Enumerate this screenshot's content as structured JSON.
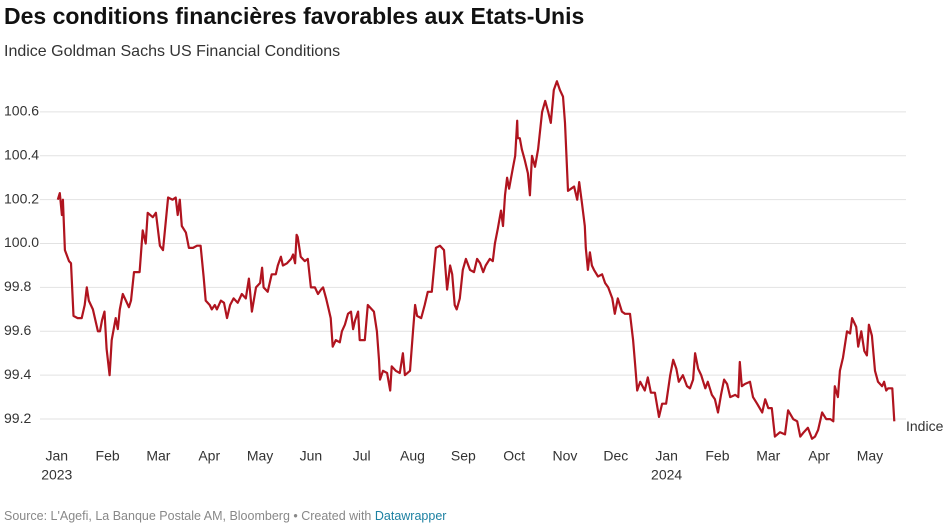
{
  "chart_data": {
    "type": "line",
    "title": "Des conditions financières favorables aux Etats-Unis",
    "subtitle": "Indice Goldman Sachs US Financial Conditions",
    "source": "Source: L'Agefi, La Banque Postale AM, Bloomberg • Created with",
    "credit": "Datawrapper",
    "x": [
      0.02,
      0.06,
      0.1,
      0.12,
      0.16,
      0.24,
      0.28,
      0.33,
      0.41,
      0.49,
      0.55,
      0.59,
      0.63,
      0.71,
      0.77,
      0.81,
      0.85,
      0.89,
      0.94,
      0.98,
      1.04,
      1.08,
      1.16,
      1.2,
      1.24,
      1.3,
      1.36,
      1.42,
      1.46,
      1.52,
      1.63,
      1.69,
      1.75,
      1.79,
      1.89,
      1.95,
      2.03,
      2.09,
      2.19,
      2.28,
      2.34,
      2.38,
      2.42,
      2.46,
      2.54,
      2.6,
      2.68,
      2.76,
      2.83,
      2.89,
      2.93,
      3.01,
      3.05,
      3.11,
      3.15,
      3.23,
      3.29,
      3.35,
      3.41,
      3.48,
      3.56,
      3.64,
      3.72,
      3.78,
      3.84,
      3.92,
      4.0,
      4.04,
      4.07,
      4.15,
      4.23,
      4.31,
      4.35,
      4.41,
      4.45,
      4.53,
      4.61,
      4.65,
      4.69,
      4.72,
      4.74,
      4.8,
      4.88,
      4.94,
      5.0,
      5.08,
      5.14,
      5.2,
      5.24,
      5.3,
      5.35,
      5.39,
      5.43,
      5.49,
      5.57,
      5.61,
      5.67,
      5.73,
      5.79,
      5.83,
      5.87,
      5.93,
      5.96,
      6.06,
      6.12,
      6.24,
      6.3,
      6.34,
      6.36,
      6.42,
      6.5,
      6.56,
      6.59,
      6.67,
      6.75,
      6.81,
      6.85,
      6.95,
      7.01,
      7.05,
      7.09,
      7.17,
      7.24,
      7.3,
      7.38,
      7.46,
      7.54,
      7.62,
      7.68,
      7.74,
      7.78,
      7.83,
      7.87,
      7.93,
      7.99,
      8.05,
      8.13,
      8.21,
      8.27,
      8.33,
      8.39,
      8.44,
      8.52,
      8.58,
      8.62,
      8.68,
      8.74,
      8.78,
      8.82,
      8.86,
      8.9,
      8.94,
      8.98,
      9.02,
      9.06,
      9.07,
      9.11,
      9.15,
      9.21,
      9.27,
      9.31,
      9.35,
      9.41,
      9.47,
      9.55,
      9.61,
      9.67,
      9.72,
      9.78,
      9.84,
      9.9,
      9.96,
      10.0,
      10.06,
      10.12,
      10.18,
      10.24,
      10.28,
      10.33,
      10.39,
      10.41,
      10.45,
      10.49,
      10.53,
      10.57,
      10.65,
      10.73,
      10.79,
      10.85,
      10.93,
      10.98,
      11.04,
      11.12,
      11.18,
      11.28,
      11.34,
      11.38,
      11.42,
      11.48,
      11.57,
      11.63,
      11.69,
      11.77,
      11.85,
      11.91,
      11.99,
      12.07,
      12.13,
      12.19,
      12.24,
      12.32,
      12.4,
      12.46,
      12.52,
      12.56,
      12.62,
      12.68,
      12.76,
      12.81,
      12.89,
      12.95,
      13.01,
      13.07,
      13.13,
      13.19,
      13.25,
      13.35,
      13.41,
      13.44,
      13.48,
      13.54,
      13.64,
      13.7,
      13.78,
      13.88,
      13.94,
      14.0,
      14.07,
      14.13,
      14.23,
      14.33,
      14.39,
      14.49,
      14.57,
      14.63,
      14.7,
      14.78,
      14.86,
      14.92,
      14.98,
      15.06,
      15.14,
      15.22,
      15.28,
      15.31,
      15.37,
      15.41,
      15.47,
      15.55,
      15.61,
      15.65,
      15.73,
      15.77,
      15.83,
      15.89,
      15.94,
      15.98,
      16.04,
      16.1,
      16.16,
      16.24,
      16.28,
      16.32,
      16.36,
      16.44,
      16.48
    ],
    "series": [
      {
        "name": "Indice",
        "color": "#b0141f",
        "values": [
          100.2,
          100.23,
          100.13,
          100.2,
          99.97,
          99.92,
          99.91,
          99.67,
          99.66,
          99.66,
          99.72,
          99.8,
          99.74,
          99.7,
          99.64,
          99.6,
          99.6,
          99.65,
          99.69,
          99.52,
          99.4,
          99.56,
          99.66,
          99.61,
          99.7,
          99.77,
          99.74,
          99.71,
          99.74,
          99.87,
          99.87,
          100.06,
          100.0,
          100.14,
          100.12,
          100.14,
          99.99,
          99.97,
          100.21,
          100.2,
          100.21,
          100.13,
          100.2,
          100.08,
          100.05,
          99.98,
          99.98,
          99.99,
          99.99,
          99.85,
          99.74,
          99.72,
          99.7,
          99.72,
          99.7,
          99.74,
          99.73,
          99.66,
          99.72,
          99.75,
          99.73,
          99.77,
          99.75,
          99.84,
          99.69,
          99.8,
          99.82,
          99.89,
          99.8,
          99.78,
          99.86,
          99.86,
          99.9,
          99.94,
          99.9,
          99.91,
          99.93,
          99.95,
          99.91,
          100.04,
          100.03,
          99.94,
          99.92,
          99.93,
          99.8,
          99.8,
          99.77,
          99.79,
          99.8,
          99.75,
          99.7,
          99.66,
          99.53,
          99.56,
          99.55,
          99.6,
          99.63,
          99.68,
          99.69,
          99.61,
          99.65,
          99.69,
          99.56,
          99.56,
          99.72,
          99.69,
          99.6,
          99.47,
          99.38,
          99.42,
          99.41,
          99.33,
          99.44,
          99.42,
          99.41,
          99.5,
          99.4,
          99.42,
          99.6,
          99.72,
          99.67,
          99.66,
          99.72,
          99.78,
          99.78,
          99.98,
          99.99,
          99.97,
          99.79,
          99.9,
          99.86,
          99.72,
          99.7,
          99.75,
          99.88,
          99.93,
          99.88,
          99.87,
          99.93,
          99.91,
          99.87,
          99.9,
          99.93,
          99.92,
          100.0,
          100.07,
          100.15,
          100.08,
          100.22,
          100.3,
          100.25,
          100.3,
          100.35,
          100.4,
          100.56,
          100.48,
          100.48,
          100.43,
          100.38,
          100.32,
          100.22,
          100.4,
          100.35,
          100.43,
          100.6,
          100.65,
          100.6,
          100.55,
          100.7,
          100.74,
          100.7,
          100.67,
          100.55,
          100.24,
          100.25,
          100.26,
          100.2,
          100.28,
          100.19,
          100.08,
          99.98,
          99.88,
          99.96,
          99.9,
          99.88,
          99.85,
          99.86,
          99.82,
          99.8,
          99.75,
          99.68,
          99.75,
          99.69,
          99.68,
          99.68,
          99.56,
          99.45,
          99.33,
          99.37,
          99.33,
          99.39,
          99.32,
          99.32,
          99.21,
          99.27,
          99.27,
          99.4,
          99.47,
          99.43,
          99.37,
          99.4,
          99.35,
          99.34,
          99.38,
          99.5,
          99.43,
          99.4,
          99.34,
          99.37,
          99.31,
          99.29,
          99.23,
          99.31,
          99.38,
          99.36,
          99.3,
          99.31,
          99.3,
          99.46,
          99.35,
          99.36,
          99.37,
          99.3,
          99.27,
          99.23,
          99.29,
          99.25,
          99.25,
          99.12,
          99.14,
          99.13,
          99.24,
          99.2,
          99.19,
          99.12,
          99.14,
          99.16,
          99.11,
          99.12,
          99.15,
          99.23,
          99.2,
          99.2,
          99.19,
          99.35,
          99.3,
          99.42,
          99.48,
          99.6,
          99.59,
          99.66,
          99.62,
          99.53,
          99.6,
          99.51,
          99.49,
          99.63,
          99.58,
          99.42,
          99.37,
          99.35,
          99.37,
          99.33,
          99.34,
          99.34,
          99.19
        ]
      }
    ],
    "xlim": [
      -0.33,
      16.71
    ],
    "xticks": [
      {
        "value": 0,
        "label": "Jan"
      },
      {
        "value": 1,
        "label": "Feb"
      },
      {
        "value": 2,
        "label": "Mar"
      },
      {
        "value": 3,
        "label": "Apr"
      },
      {
        "value": 4,
        "label": "May"
      },
      {
        "value": 5,
        "label": "Jun"
      },
      {
        "value": 6,
        "label": "Jul"
      },
      {
        "value": 7,
        "label": "Aug"
      },
      {
        "value": 8,
        "label": "Sep"
      },
      {
        "value": 9,
        "label": "Oct"
      },
      {
        "value": 10,
        "label": "Nov"
      },
      {
        "value": 11,
        "label": "Dec"
      },
      {
        "value": 12,
        "label": "Jan"
      },
      {
        "value": 13,
        "label": "Feb"
      },
      {
        "value": 14,
        "label": "Mar"
      },
      {
        "value": 15,
        "label": "Apr"
      },
      {
        "value": 16,
        "label": "May"
      }
    ],
    "xtick_years": [
      {
        "value": 0,
        "label": "2023"
      },
      {
        "value": 12,
        "label": "2024"
      }
    ],
    "ylim": [
      99.1,
      100.75
    ],
    "yticks": [
      99.2,
      99.4,
      99.6,
      99.8,
      {
        "value": 100,
        "label": "100.0"
      },
      100.2,
      100.4,
      100.6
    ],
    "grid": true
  }
}
